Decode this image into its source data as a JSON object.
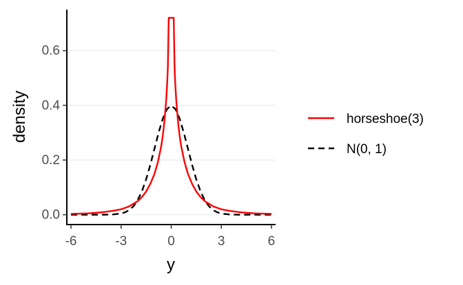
{
  "chart_data": {
    "type": "line",
    "title": "",
    "xlabel": "y",
    "ylabel": "density",
    "xlim": [
      -6.25,
      6.25
    ],
    "ylim": [
      -0.036,
      0.75
    ],
    "x_ticks": [
      -6,
      -3,
      0,
      3,
      6
    ],
    "x_tick_labels": [
      "-6",
      "-3",
      "0",
      "3",
      "6"
    ],
    "y_ticks": [
      0.0,
      0.2,
      0.4,
      0.6
    ],
    "y_tick_labels": [
      "0.0",
      "0.2",
      "0.4",
      "0.6"
    ],
    "grid": "horizontal major",
    "legend_position": "right",
    "series": [
      {
        "name": "horseshoe(3)",
        "color": "#ff0000",
        "dash": "solid",
        "x": [
          -6,
          -5.5,
          -5,
          -4.5,
          -4,
          -3.5,
          -3,
          -2.5,
          -2,
          -1.75,
          -1.5,
          -1.25,
          -1,
          -0.8,
          -0.6,
          -0.5,
          -0.4,
          -0.3,
          -0.25,
          -0.2,
          -0.15,
          0.15,
          0.2,
          0.25,
          0.3,
          0.4,
          0.5,
          0.6,
          0.8,
          1,
          1.25,
          1.5,
          1.75,
          2,
          2.5,
          3,
          3.5,
          4,
          4.5,
          5,
          5.5,
          6
        ],
        "y": [
          0.003,
          0.004,
          0.005,
          0.007,
          0.01,
          0.014,
          0.02,
          0.031,
          0.05,
          0.065,
          0.085,
          0.113,
          0.15,
          0.192,
          0.25,
          0.29,
          0.345,
          0.42,
          0.47,
          0.54,
          0.72,
          0.72,
          0.54,
          0.47,
          0.42,
          0.345,
          0.29,
          0.25,
          0.192,
          0.15,
          0.113,
          0.085,
          0.065,
          0.05,
          0.031,
          0.02,
          0.014,
          0.01,
          0.007,
          0.005,
          0.004,
          0.003
        ]
      },
      {
        "name": "N(0, 1)",
        "color": "#000000",
        "dash": "dashed",
        "x": [
          -6,
          -5.5,
          -5,
          -4.5,
          -4,
          -3.5,
          -3,
          -2.75,
          -2.5,
          -2.25,
          -2,
          -1.75,
          -1.5,
          -1.25,
          -1,
          -0.75,
          -0.5,
          -0.25,
          0,
          0.25,
          0.5,
          0.75,
          1,
          1.25,
          1.5,
          1.75,
          2,
          2.25,
          2.5,
          2.75,
          3,
          3.5,
          4,
          4.5,
          5,
          5.5,
          6
        ],
        "y": [
          0,
          0,
          0,
          0,
          0.0001,
          0.0009,
          0.0044,
          0.0091,
          0.0175,
          0.0317,
          0.054,
          0.0863,
          0.1295,
          0.1826,
          0.242,
          0.3011,
          0.3521,
          0.3867,
          0.3989,
          0.3867,
          0.3521,
          0.3011,
          0.242,
          0.1826,
          0.1295,
          0.0863,
          0.054,
          0.0317,
          0.0175,
          0.0091,
          0.0044,
          0.0009,
          0.0001,
          0,
          0,
          0,
          0
        ]
      }
    ]
  }
}
